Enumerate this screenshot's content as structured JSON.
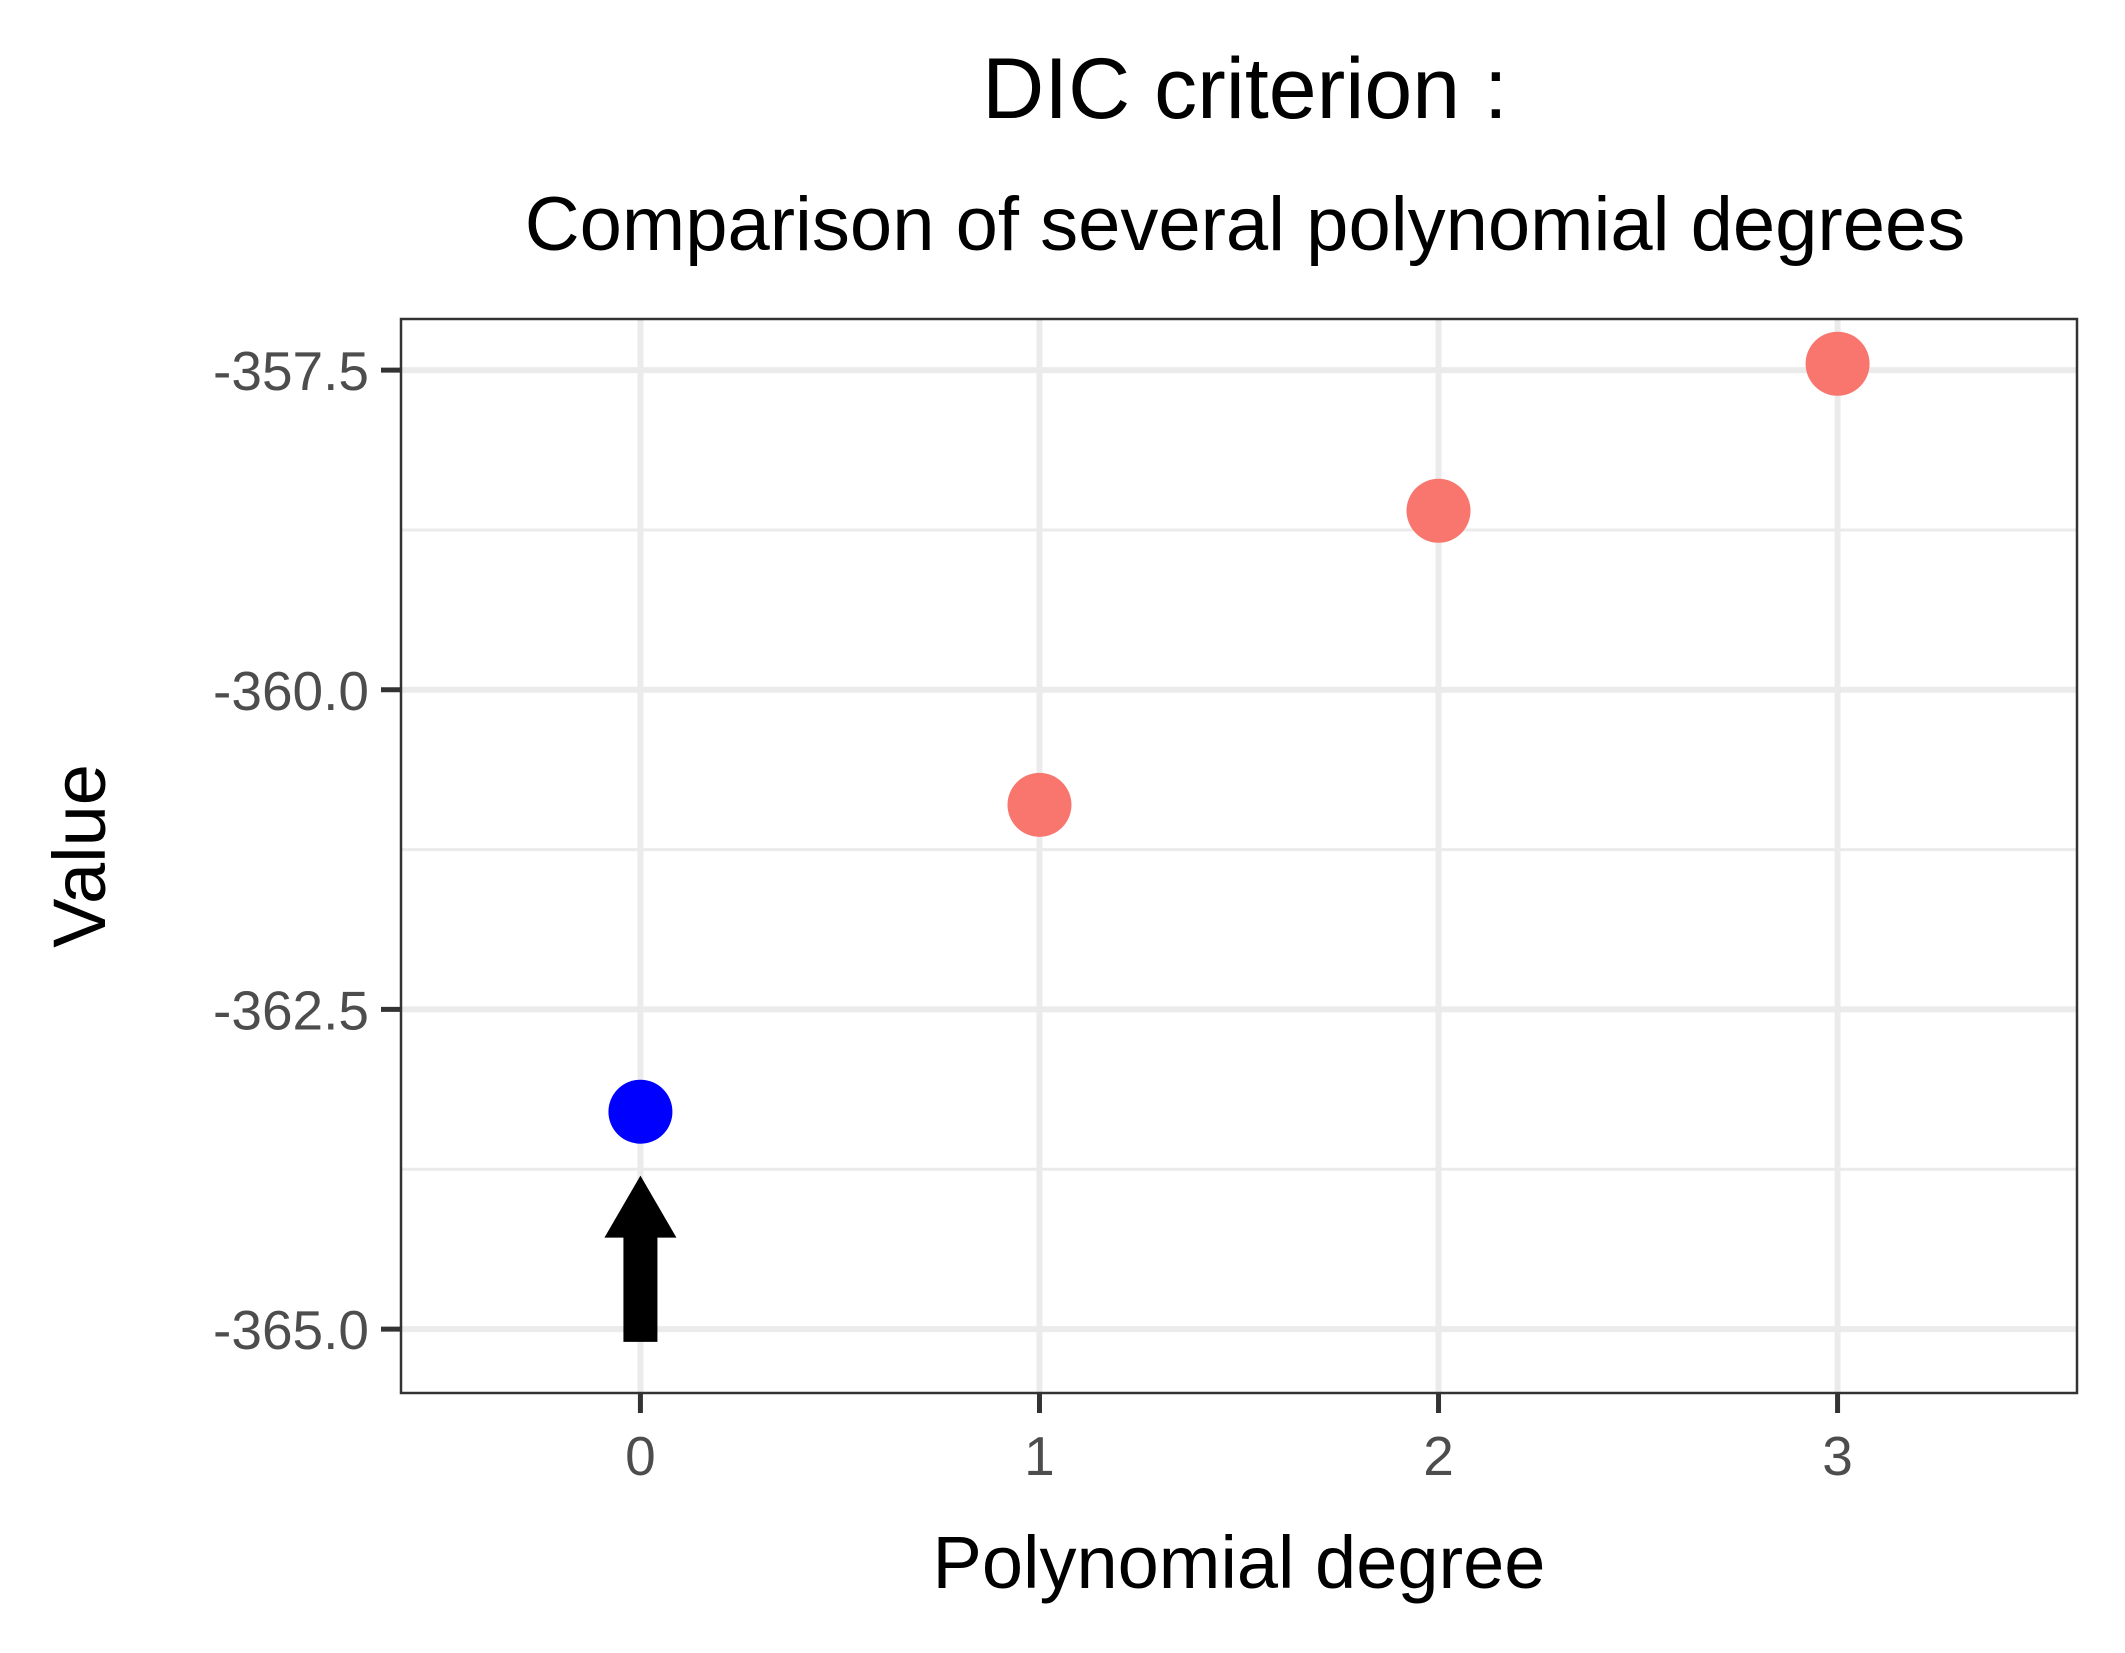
{
  "chart_data": {
    "type": "scatter",
    "title": "DIC criterion :",
    "subtitle": "Comparison of several polynomial degrees",
    "xlabel": "Polynomial degree",
    "ylabel": "Value",
    "x": [
      0,
      1,
      2,
      3
    ],
    "y": [
      -363.3,
      -360.9,
      -358.6,
      -357.45
    ],
    "point_colors": [
      "#0000ff",
      "#f8766d",
      "#f8766d",
      "#f8766d"
    ],
    "highlight_color": "#0000ff",
    "default_color": "#f8766d",
    "xlim": [
      -0.6,
      3.6
    ],
    "ylim": [
      -365.5,
      -357.1
    ],
    "x_ticks": [
      0,
      1,
      2,
      3
    ],
    "x_tick_labels": [
      "0",
      "1",
      "2",
      "3"
    ],
    "y_ticks": [
      -365.0,
      -362.5,
      -360.0,
      -357.5
    ],
    "y_tick_labels": [
      "-365.0",
      "-362.5",
      "-360.0",
      "-357.5"
    ],
    "y_minor_ticks": [
      -363.75,
      -361.25,
      -358.75
    ],
    "grid": true,
    "legend": "none",
    "annotation": {
      "type": "arrow",
      "x": 0,
      "y_from": -365.1,
      "y_to": -363.8,
      "points_to": "degree 0"
    }
  }
}
